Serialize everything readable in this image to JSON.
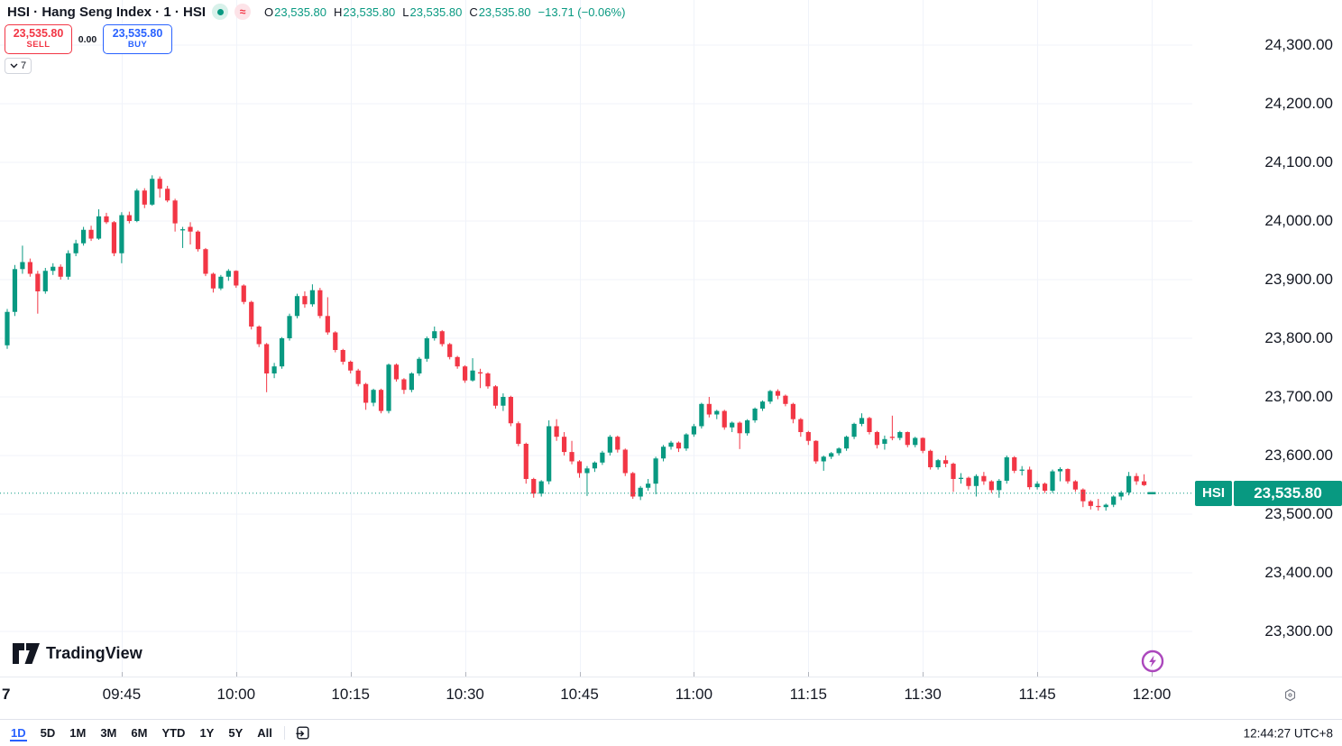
{
  "header": {
    "symbol_title": "HSI · Hang Seng Index · 1 · HSI",
    "badges": {
      "approx": "≈"
    },
    "legend": {
      "o_label": "O",
      "o": "23,535.80",
      "h_label": "H",
      "h": "23,535.80",
      "l_label": "L",
      "l": "23,535.80",
      "c_label": "C",
      "c": "23,535.80",
      "change": "−13.71 (−0.06%)"
    }
  },
  "trade_panel": {
    "sell_price": "23,535.80",
    "sell_label": "SELL",
    "spread": "0.00",
    "buy_price": "23,535.80",
    "buy_label": "BUY",
    "orders_count": "7"
  },
  "price_axis": {
    "label": {
      "symbol": "HSI",
      "price": "23,535.80"
    }
  },
  "time_axis": {
    "day_label": "7"
  },
  "toolbar": {
    "ranges": [
      "1D",
      "5D",
      "1M",
      "3M",
      "6M",
      "YTD",
      "1Y",
      "5Y",
      "All"
    ],
    "active_range": "1D",
    "clock": "12:44:27 UTC+8"
  },
  "logo_text": "TradingView",
  "colors": {
    "up": "#089981",
    "down": "#f23645",
    "buy_blue": "#2962ff",
    "sell_red": "#f23645",
    "grid": "#f0f3fa",
    "text": "#131722",
    "muted": "#787b86",
    "session_purple": "#ab47bc",
    "price_line": "#089981"
  },
  "chart_data": {
    "type": "candlestick",
    "symbol": "HSI",
    "title": "Hang Seng Index",
    "interval": "1",
    "session_start": "09:30",
    "interval_minutes": 1,
    "grid": true,
    "y_range": [
      23223,
      24377
    ],
    "price_ticks": [
      24300,
      24200,
      24100,
      24000,
      23900,
      23800,
      23700,
      23600,
      23500,
      23400,
      23300
    ],
    "time_ticks": [
      "09:45",
      "10:00",
      "10:15",
      "10:30",
      "10:45",
      "11:00",
      "11:15",
      "11:30",
      "11:45",
      "12:00"
    ],
    "current_price": 23535.8,
    "change": -13.71,
    "change_pct": -0.06,
    "ohlc_current": {
      "o": 23535.8,
      "h": 23535.8,
      "l": 23535.8,
      "c": 23535.8
    },
    "candles": [
      [
        23788,
        23850,
        23782,
        23845
      ],
      [
        23845,
        23925,
        23838,
        23918
      ],
      [
        23918,
        23958,
        23910,
        23930
      ],
      [
        23930,
        23936,
        23905,
        23910
      ],
      [
        23910,
        23915,
        23842,
        23880
      ],
      [
        23880,
        23920,
        23876,
        23915
      ],
      [
        23915,
        23928,
        23908,
        23922
      ],
      [
        23922,
        23926,
        23900,
        23905
      ],
      [
        23905,
        23950,
        23900,
        23945
      ],
      [
        23945,
        23968,
        23940,
        23962
      ],
      [
        23962,
        23990,
        23958,
        23985
      ],
      [
        23985,
        23992,
        23966,
        23970
      ],
      [
        23970,
        24020,
        23968,
        24008
      ],
      [
        24008,
        24014,
        23995,
        23998
      ],
      [
        23998,
        24000,
        23940,
        23945
      ],
      [
        23945,
        24015,
        23928,
        24010
      ],
      [
        24010,
        24016,
        23996,
        24000
      ],
      [
        24000,
        24055,
        23998,
        24052
      ],
      [
        24052,
        24056,
        24022,
        24028
      ],
      [
        24028,
        24078,
        24026,
        24072
      ],
      [
        24072,
        24076,
        24040,
        24055
      ],
      [
        24055,
        24060,
        24032,
        24035
      ],
      [
        24035,
        24038,
        23982,
        23996
      ],
      [
        23984,
        23990,
        23954,
        23986
      ],
      [
        23990,
        23998,
        23960,
        23982
      ],
      [
        23982,
        23984,
        23948,
        23952
      ],
      [
        23952,
        23954,
        23906,
        23910
      ],
      [
        23910,
        23912,
        23878,
        23885
      ],
      [
        23885,
        23908,
        23882,
        23905
      ],
      [
        23905,
        23918,
        23898,
        23915
      ],
      [
        23915,
        23916,
        23886,
        23890
      ],
      [
        23890,
        23892,
        23858,
        23862
      ],
      [
        23862,
        23864,
        23815,
        23820
      ],
      [
        23820,
        23822,
        23785,
        23790
      ],
      [
        23790,
        23792,
        23708,
        23740
      ],
      [
        23740,
        23758,
        23732,
        23752
      ],
      [
        23752,
        23802,
        23748,
        23800
      ],
      [
        23800,
        23842,
        23796,
        23838
      ],
      [
        23838,
        23876,
        23834,
        23872
      ],
      [
        23872,
        23880,
        23852,
        23858
      ],
      [
        23858,
        23892,
        23854,
        23882
      ],
      [
        23882,
        23886,
        23834,
        23838
      ],
      [
        23838,
        23870,
        23806,
        23810
      ],
      [
        23810,
        23812,
        23776,
        23780
      ],
      [
        23780,
        23782,
        23755,
        23760
      ],
      [
        23760,
        23762,
        23740,
        23745
      ],
      [
        23745,
        23748,
        23718,
        23722
      ],
      [
        23722,
        23724,
        23678,
        23690
      ],
      [
        23690,
        23714,
        23684,
        23712
      ],
      [
        23712,
        23714,
        23672,
        23676
      ],
      [
        23676,
        23757,
        23672,
        23755
      ],
      [
        23755,
        23757,
        23726,
        23730
      ],
      [
        23730,
        23732,
        23705,
        23712
      ],
      [
        23712,
        23742,
        23708,
        23740
      ],
      [
        23740,
        23768,
        23736,
        23765
      ],
      [
        23765,
        23803,
        23760,
        23800
      ],
      [
        23800,
        23820,
        23796,
        23812
      ],
      [
        23812,
        23814,
        23786,
        23790
      ],
      [
        23790,
        23792,
        23764,
        23768
      ],
      [
        23768,
        23770,
        23748,
        23752
      ],
      [
        23752,
        23754,
        23724,
        23728
      ],
      [
        23728,
        23766,
        23726,
        23745
      ],
      [
        23742,
        23748,
        23715,
        23740
      ],
      [
        23740,
        23742,
        23714,
        23718
      ],
      [
        23718,
        23720,
        23680,
        23685
      ],
      [
        23685,
        23706,
        23676,
        23700
      ],
      [
        23700,
        23702,
        23650,
        23655
      ],
      [
        23655,
        23658,
        23616,
        23620
      ],
      [
        23620,
        23622,
        23552,
        23560
      ],
      [
        23560,
        23562,
        23528,
        23535
      ],
      [
        23535,
        23558,
        23530,
        23556
      ],
      [
        23556,
        23660,
        23551,
        23650
      ],
      [
        23650,
        23662,
        23625,
        23632
      ],
      [
        23632,
        23640,
        23600,
        23606
      ],
      [
        23606,
        23625,
        23585,
        23590
      ],
      [
        23590,
        23592,
        23562,
        23570
      ],
      [
        23570,
        23582,
        23531,
        23578
      ],
      [
        23578,
        23590,
        23572,
        23588
      ],
      [
        23588,
        23608,
        23584,
        23605
      ],
      [
        23605,
        23635,
        23600,
        23632
      ],
      [
        23632,
        23634,
        23605,
        23610
      ],
      [
        23610,
        23612,
        23565,
        23570
      ],
      [
        23570,
        23572,
        23526,
        23530
      ],
      [
        23530,
        23548,
        23524,
        23545
      ],
      [
        23545,
        23560,
        23540,
        23552
      ],
      [
        23552,
        23598,
        23534,
        23595
      ],
      [
        23595,
        23618,
        23590,
        23615
      ],
      [
        23615,
        23625,
        23610,
        23622
      ],
      [
        23622,
        23624,
        23606,
        23612
      ],
      [
        23612,
        23638,
        23608,
        23636
      ],
      [
        23636,
        23654,
        23632,
        23650
      ],
      [
        23650,
        23690,
        23646,
        23688
      ],
      [
        23688,
        23700,
        23665,
        23670
      ],
      [
        23670,
        23678,
        23662,
        23676
      ],
      [
        23676,
        23678,
        23644,
        23648
      ],
      [
        23648,
        23658,
        23640,
        23656
      ],
      [
        23656,
        23658,
        23611,
        23638
      ],
      [
        23638,
        23662,
        23634,
        23660
      ],
      [
        23660,
        23682,
        23656,
        23680
      ],
      [
        23680,
        23694,
        23676,
        23692
      ],
      [
        23692,
        23712,
        23688,
        23710
      ],
      [
        23710,
        23713,
        23696,
        23702
      ],
      [
        23702,
        23704,
        23684,
        23688
      ],
      [
        23688,
        23690,
        23655,
        23662
      ],
      [
        23662,
        23664,
        23632,
        23640
      ],
      [
        23640,
        23642,
        23618,
        23625
      ],
      [
        23625,
        23626,
        23586,
        23590
      ],
      [
        23590,
        23600,
        23574,
        23598
      ],
      [
        23598,
        23606,
        23594,
        23604
      ],
      [
        23604,
        23614,
        23600,
        23612
      ],
      [
        23612,
        23634,
        23608,
        23632
      ],
      [
        23632,
        23656,
        23628,
        23654
      ],
      [
        23654,
        23672,
        23650,
        23664
      ],
      [
        23664,
        23666,
        23636,
        23640
      ],
      [
        23640,
        23642,
        23612,
        23618
      ],
      [
        23620,
        23634,
        23610,
        23628
      ],
      [
        23632,
        23668,
        23626,
        23630
      ],
      [
        23630,
        23642,
        23626,
        23640
      ],
      [
        23640,
        23641,
        23614,
        23618
      ],
      [
        23618,
        23632,
        23614,
        23630
      ],
      [
        23630,
        23631,
        23604,
        23608
      ],
      [
        23608,
        23610,
        23576,
        23580
      ],
      [
        23580,
        23594,
        23576,
        23592
      ],
      [
        23592,
        23600,
        23580,
        23586
      ],
      [
        23586,
        23588,
        23538,
        23560
      ],
      [
        23560,
        23570,
        23552,
        23562
      ],
      [
        23562,
        23564,
        23542,
        23548
      ],
      [
        23548,
        23568,
        23530,
        23565
      ],
      [
        23565,
        23572,
        23550,
        23556
      ],
      [
        23556,
        23558,
        23536,
        23541
      ],
      [
        23541,
        23560,
        23528,
        23557
      ],
      [
        23557,
        23600,
        23552,
        23597
      ],
      [
        23597,
        23599,
        23570,
        23574
      ],
      [
        23574,
        23582,
        23566,
        23576
      ],
      [
        23576,
        23581,
        23542,
        23546
      ],
      [
        23546,
        23556,
        23542,
        23552
      ],
      [
        23552,
        23554,
        23536,
        23540
      ],
      [
        23540,
        23576,
        23536,
        23573
      ],
      [
        23573,
        23580,
        23556,
        23577
      ],
      [
        23577,
        23578,
        23552,
        23556
      ],
      [
        23556,
        23558,
        23538,
        23542
      ],
      [
        23542,
        23544,
        23512,
        23522
      ],
      [
        23522,
        23524,
        23508,
        23514
      ],
      [
        23514,
        23526,
        23506,
        23512
      ],
      [
        23512,
        23518,
        23506,
        23516
      ],
      [
        23516,
        23532,
        23512,
        23530
      ],
      [
        23530,
        23540,
        23524,
        23537
      ],
      [
        23537,
        23572,
        23532,
        23565
      ],
      [
        23565,
        23570,
        23550,
        23556
      ],
      [
        23556,
        23568,
        23548,
        23549.51
      ],
      [
        23535.8,
        23535.8,
        23535.8,
        23535.8
      ]
    ]
  }
}
